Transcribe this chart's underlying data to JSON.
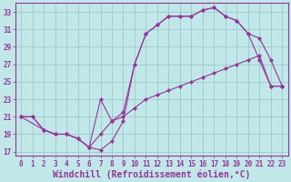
{
  "xlabel": "Windchill (Refroidissement éolien,°C)",
  "ylabel": "",
  "xlim": [
    -0.5,
    23.5
  ],
  "ylim": [
    16.5,
    34
  ],
  "yticks": [
    17,
    19,
    21,
    23,
    25,
    27,
    29,
    31,
    33
  ],
  "xticks": [
    0,
    1,
    2,
    3,
    4,
    5,
    6,
    7,
    8,
    9,
    10,
    11,
    12,
    13,
    14,
    15,
    16,
    17,
    18,
    19,
    20,
    21,
    22,
    23
  ],
  "bg_color": "#c0e8e8",
  "grid_color": "#a0c8c8",
  "line_color": "#993399",
  "curve1_x": [
    0,
    1,
    2,
    3,
    4,
    5,
    6,
    7,
    8,
    9,
    10,
    11,
    12,
    13,
    14,
    15,
    16,
    17,
    18,
    19,
    20,
    21,
    22,
    23
  ],
  "curve1_y": [
    21.0,
    21.0,
    19.5,
    19.0,
    19.0,
    18.5,
    17.5,
    17.2,
    18.2,
    20.5,
    27.0,
    30.5,
    31.5,
    32.5,
    32.5,
    32.5,
    33.2,
    33.5,
    32.5,
    32.0,
    30.5,
    27.5,
    24.5,
    24.5
  ],
  "curve2_x": [
    0,
    1,
    2,
    3,
    4,
    5,
    6,
    7,
    8,
    9,
    10,
    11,
    12,
    13,
    14,
    15,
    16,
    17,
    18,
    19,
    20,
    21,
    22,
    23
  ],
  "curve2_y": [
    21.0,
    21.0,
    19.5,
    19.0,
    19.0,
    18.5,
    17.5,
    23.0,
    20.5,
    21.5,
    27.0,
    30.5,
    31.5,
    32.5,
    32.5,
    32.5,
    33.2,
    33.5,
    32.5,
    32.0,
    30.5,
    30.0,
    27.5,
    24.5
  ],
  "curve3_x": [
    0,
    2,
    3,
    4,
    5,
    6,
    7,
    8,
    9,
    10,
    11,
    12,
    13,
    14,
    15,
    16,
    17,
    18,
    19,
    20,
    21,
    22,
    23
  ],
  "curve3_y": [
    21.0,
    19.5,
    19.0,
    19.0,
    18.5,
    17.5,
    19.0,
    20.5,
    21.0,
    22.0,
    23.0,
    23.5,
    24.0,
    24.5,
    25.0,
    25.5,
    26.0,
    26.5,
    27.0,
    27.5,
    28.0,
    24.5,
    24.5
  ],
  "tick_fontsize": 5.5,
  "xlabel_fontsize": 7.0,
  "axis_color": "#993399",
  "tick_color": "#993399"
}
